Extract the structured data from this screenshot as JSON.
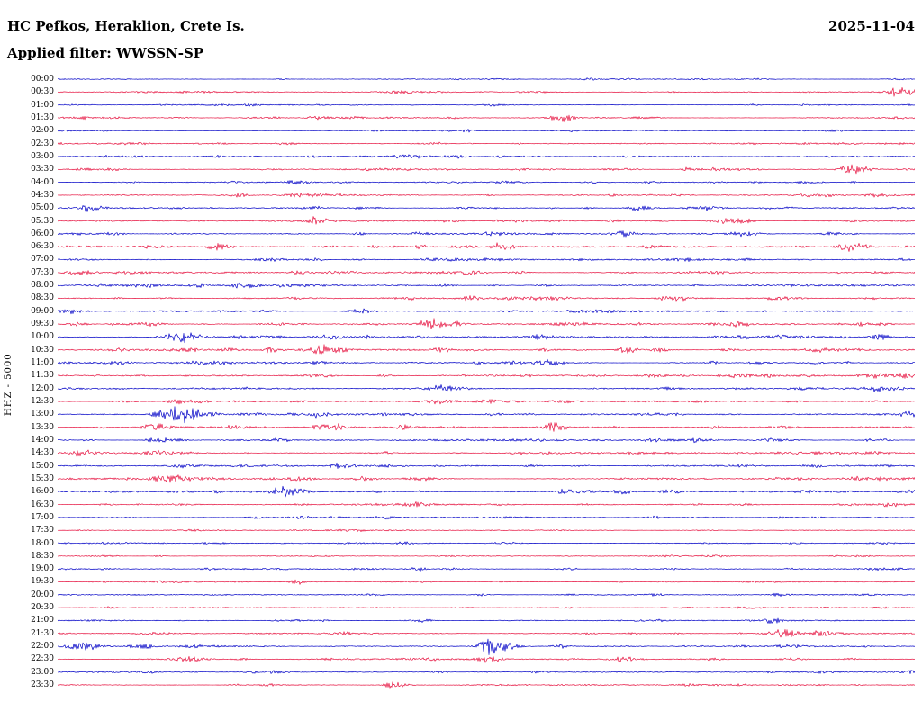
{
  "header": {
    "station_title": "HC Pefkos, Heraklion, Crete Is.",
    "date": "2025-11-04",
    "filter_line": "Applied filter: WWSSN-SP"
  },
  "axis": {
    "scale_label": "HHZ - 5000"
  },
  "colors": {
    "blue": "#0000c6",
    "red": "#e61340",
    "background": "#ffffff",
    "text": "#000000"
  },
  "chart_data": {
    "type": "line",
    "subtype": "helicorder-seismogram",
    "title": "HC Pefkos, Heraklion, Crete Is. 2025-11-04 HHZ helicorder, filter WWSSN-SP",
    "station": "HC Pefkos, Heraklion, Crete Is.",
    "date": "2025-11-04",
    "filter": "WWSSN-SP",
    "channel_scale": "HHZ - 5000",
    "row_duration_minutes": 30,
    "trace_colors_alternate": [
      "blue",
      "red"
    ],
    "event_fields": "t = fraction of 30-min row, amp = peak amplitude (px), w = width sigma (px)",
    "rows": [
      {
        "time": "00:00",
        "color": "blue",
        "noise": 0.7,
        "events": [
          {
            "t": 0.62,
            "amp": 1.0,
            "w": 6
          }
        ]
      },
      {
        "time": "00:30",
        "color": "red",
        "noise": 0.9,
        "events": [
          {
            "t": 0.98,
            "amp": 5.0,
            "w": 10
          },
          {
            "t": 0.4,
            "amp": 1.5,
            "w": 20
          },
          {
            "t": 0.55,
            "amp": 1.2,
            "w": 15
          }
        ]
      },
      {
        "time": "01:00",
        "color": "blue",
        "noise": 0.7,
        "events": [
          {
            "t": 0.5,
            "amp": 1.0,
            "w": 10
          }
        ]
      },
      {
        "time": "01:30",
        "color": "red",
        "noise": 0.9,
        "events": [
          {
            "t": 0.585,
            "amp": 4.0,
            "w": 9
          },
          {
            "t": 0.3,
            "amp": 1.5,
            "w": 8
          }
        ]
      },
      {
        "time": "02:00",
        "color": "blue",
        "noise": 0.8,
        "events": [
          {
            "t": 0.475,
            "amp": 1.8,
            "w": 6
          }
        ]
      },
      {
        "time": "02:30",
        "color": "red",
        "noise": 0.8,
        "events": [
          {
            "t": 0.44,
            "amp": 1.5,
            "w": 6
          },
          {
            "t": 0.1,
            "amp": 1.2,
            "w": 5
          }
        ]
      },
      {
        "time": "03:00",
        "color": "blue",
        "noise": 0.9,
        "events": [
          {
            "t": 0.46,
            "amp": 2.2,
            "w": 7
          },
          {
            "t": 0.515,
            "amp": 2.2,
            "w": 6
          }
        ]
      },
      {
        "time": "03:30",
        "color": "red",
        "noise": 0.9,
        "events": [
          {
            "t": 0.735,
            "amp": 2.5,
            "w": 6
          },
          {
            "t": 0.925,
            "amp": 5.5,
            "w": 11
          }
        ]
      },
      {
        "time": "04:00",
        "color": "blue",
        "noise": 0.9,
        "events": [
          {
            "t": 0.28,
            "amp": 2.0,
            "w": 7
          },
          {
            "t": 0.62,
            "amp": 1.5,
            "w": 6
          }
        ]
      },
      {
        "time": "04:30",
        "color": "red",
        "noise": 1.0,
        "events": [
          {
            "t": 0.21,
            "amp": 2.0,
            "w": 6
          },
          {
            "t": 0.3,
            "amp": 1.8,
            "w": 6
          },
          {
            "t": 0.87,
            "amp": 1.8,
            "w": 6
          }
        ]
      },
      {
        "time": "05:00",
        "color": "blue",
        "noise": 1.0,
        "events": [
          {
            "t": 0.035,
            "amp": 3.5,
            "w": 8
          },
          {
            "t": 0.3,
            "amp": 1.5,
            "w": 6
          },
          {
            "t": 0.68,
            "amp": 2.0,
            "w": 8
          },
          {
            "t": 0.76,
            "amp": 2.5,
            "w": 8
          }
        ]
      },
      {
        "time": "05:30",
        "color": "red",
        "noise": 1.2,
        "events": [
          {
            "t": 0.3,
            "amp": 3.5,
            "w": 8
          },
          {
            "t": 0.645,
            "amp": 2.0,
            "w": 6
          },
          {
            "t": 0.775,
            "amp": 3.5,
            "w": 8
          },
          {
            "t": 0.8,
            "amp": 2.5,
            "w": 6
          }
        ]
      },
      {
        "time": "06:00",
        "color": "blue",
        "noise": 1.3,
        "events": [
          {
            "t": 0.42,
            "amp": 1.8,
            "w": 7
          },
          {
            "t": 0.655,
            "amp": 2.0,
            "w": 7
          },
          {
            "t": 0.9,
            "amp": 1.5,
            "w": 6
          }
        ]
      },
      {
        "time": "06:30",
        "color": "red",
        "noise": 1.3,
        "events": [
          {
            "t": 0.185,
            "amp": 3.5,
            "w": 9
          },
          {
            "t": 0.425,
            "amp": 2.5,
            "w": 7
          },
          {
            "t": 0.515,
            "amp": 4.5,
            "w": 8
          },
          {
            "t": 0.92,
            "amp": 5.5,
            "w": 9
          }
        ]
      },
      {
        "time": "07:00",
        "color": "blue",
        "noise": 1.4,
        "events": [
          {
            "t": 0.25,
            "amp": 1.8,
            "w": 8
          },
          {
            "t": 0.5,
            "amp": 1.5,
            "w": 8
          },
          {
            "t": 0.73,
            "amp": 1.5,
            "w": 7
          }
        ]
      },
      {
        "time": "07:30",
        "color": "red",
        "noise": 1.3,
        "events": [
          {
            "t": 0.28,
            "amp": 2.0,
            "w": 7
          },
          {
            "t": 0.48,
            "amp": 1.8,
            "w": 7
          },
          {
            "t": 0.77,
            "amp": 1.8,
            "w": 7
          }
        ]
      },
      {
        "time": "08:00",
        "color": "blue",
        "noise": 1.3,
        "events": [
          {
            "t": 0.105,
            "amp": 2.0,
            "w": 6
          },
          {
            "t": 0.215,
            "amp": 3.5,
            "w": 9
          },
          {
            "t": 0.45,
            "amp": 1.5,
            "w": 7
          }
        ]
      },
      {
        "time": "08:30",
        "color": "red",
        "noise": 1.3,
        "events": [
          {
            "t": 0.48,
            "amp": 2.0,
            "w": 7
          },
          {
            "t": 0.71,
            "amp": 2.8,
            "w": 8
          }
        ]
      },
      {
        "time": "09:00",
        "color": "blue",
        "noise": 1.3,
        "events": [
          {
            "t": 0.35,
            "amp": 1.5,
            "w": 7
          },
          {
            "t": 0.6,
            "amp": 1.6,
            "w": 7
          }
        ]
      },
      {
        "time": "09:30",
        "color": "red",
        "noise": 1.4,
        "events": [
          {
            "t": 0.258,
            "amp": 2.5,
            "w": 7
          },
          {
            "t": 0.432,
            "amp": 6.5,
            "w": 9
          },
          {
            "t": 0.794,
            "amp": 2.8,
            "w": 8
          }
        ]
      },
      {
        "time": "10:00",
        "color": "blue",
        "noise": 1.5,
        "events": [
          {
            "t": 0.143,
            "amp": 5.0,
            "w": 13
          },
          {
            "t": 0.32,
            "amp": 2.0,
            "w": 7
          },
          {
            "t": 0.563,
            "amp": 2.2,
            "w": 7
          },
          {
            "t": 0.8,
            "amp": 2.2,
            "w": 7
          },
          {
            "t": 0.957,
            "amp": 3.0,
            "w": 8
          }
        ]
      },
      {
        "time": "10:30",
        "color": "red",
        "noise": 1.4,
        "events": [
          {
            "t": 0.248,
            "amp": 2.8,
            "w": 7
          },
          {
            "t": 0.295,
            "amp": 3.5,
            "w": 8
          },
          {
            "t": 0.447,
            "amp": 2.8,
            "w": 7
          },
          {
            "t": 0.663,
            "amp": 3.5,
            "w": 8
          }
        ]
      },
      {
        "time": "11:00",
        "color": "blue",
        "noise": 1.3,
        "events": [
          {
            "t": 0.573,
            "amp": 3.5,
            "w": 9
          },
          {
            "t": 0.3,
            "amp": 1.5,
            "w": 7
          }
        ]
      },
      {
        "time": "11:30",
        "color": "red",
        "noise": 1.3,
        "events": [
          {
            "t": 0.794,
            "amp": 2.8,
            "w": 7
          },
          {
            "t": 0.957,
            "amp": 2.5,
            "w": 7
          },
          {
            "t": 0.38,
            "amp": 1.5,
            "w": 7
          }
        ]
      },
      {
        "time": "12:00",
        "color": "blue",
        "noise": 1.3,
        "events": [
          {
            "t": 0.447,
            "amp": 2.0,
            "w": 7
          },
          {
            "t": 0.957,
            "amp": 3.0,
            "w": 8
          }
        ]
      },
      {
        "time": "12:30",
        "color": "red",
        "noise": 1.4,
        "events": [
          {
            "t": 0.138,
            "amp": 3.5,
            "w": 8
          },
          {
            "t": 0.07,
            "amp": 2.0,
            "w": 6
          },
          {
            "t": 0.5,
            "amp": 1.6,
            "w": 7
          }
        ]
      },
      {
        "time": "13:00",
        "color": "blue",
        "noise": 1.4,
        "events": [
          {
            "t": 0.143,
            "amp": 9.5,
            "w": 14
          },
          {
            "t": 0.118,
            "amp": 4.0,
            "w": 8
          },
          {
            "t": 0.3,
            "amp": 1.8,
            "w": 7
          }
        ]
      },
      {
        "time": "13:30",
        "color": "red",
        "noise": 1.5,
        "events": [
          {
            "t": 0.111,
            "amp": 4.0,
            "w": 10
          },
          {
            "t": 0.31,
            "amp": 2.2,
            "w": 7
          },
          {
            "t": 0.33,
            "amp": 2.0,
            "w": 6
          },
          {
            "t": 0.579,
            "amp": 2.8,
            "w": 8
          }
        ]
      },
      {
        "time": "14:00",
        "color": "blue",
        "noise": 1.5,
        "events": [
          {
            "t": 0.117,
            "amp": 2.8,
            "w": 8
          },
          {
            "t": 0.258,
            "amp": 2.2,
            "w": 7
          },
          {
            "t": 0.75,
            "amp": 1.6,
            "w": 7
          }
        ]
      },
      {
        "time": "14:30",
        "color": "red",
        "noise": 1.3,
        "events": [
          {
            "t": 0.027,
            "amp": 3.2,
            "w": 8
          },
          {
            "t": 0.537,
            "amp": 1.8,
            "w": 7
          }
        ]
      },
      {
        "time": "15:00",
        "color": "blue",
        "noise": 1.3,
        "events": [
          {
            "t": 0.327,
            "amp": 3.5,
            "w": 9
          },
          {
            "t": 0.55,
            "amp": 1.5,
            "w": 7
          }
        ]
      },
      {
        "time": "15:30",
        "color": "red",
        "noise": 1.4,
        "events": [
          {
            "t": 0.127,
            "amp": 5.5,
            "w": 12
          },
          {
            "t": 0.279,
            "amp": 2.8,
            "w": 8
          }
        ]
      },
      {
        "time": "16:00",
        "color": "blue",
        "noise": 1.3,
        "events": [
          {
            "t": 0.258,
            "amp": 4.5,
            "w": 9
          },
          {
            "t": 0.589,
            "amp": 2.8,
            "w": 8
          },
          {
            "t": 0.657,
            "amp": 3.2,
            "w": 8
          },
          {
            "t": 0.868,
            "amp": 2.2,
            "w": 7
          }
        ]
      },
      {
        "time": "16:30",
        "color": "red",
        "noise": 1.2,
        "events": [
          {
            "t": 0.967,
            "amp": 2.8,
            "w": 8
          },
          {
            "t": 0.42,
            "amp": 1.5,
            "w": 7
          }
        ]
      },
      {
        "time": "17:00",
        "color": "blue",
        "noise": 1.0,
        "events": [
          {
            "t": 0.28,
            "amp": 1.3,
            "w": 7
          }
        ]
      },
      {
        "time": "17:30",
        "color": "red",
        "noise": 0.8,
        "events": []
      },
      {
        "time": "18:00",
        "color": "blue",
        "noise": 0.8,
        "events": [
          {
            "t": 0.4,
            "amp": 1.8,
            "w": 6
          }
        ]
      },
      {
        "time": "18:30",
        "color": "red",
        "noise": 0.7,
        "events": []
      },
      {
        "time": "19:00",
        "color": "blue",
        "noise": 0.8,
        "events": [
          {
            "t": 0.42,
            "amp": 2.2,
            "w": 6
          },
          {
            "t": 0.455,
            "amp": 1.8,
            "w": 6
          }
        ]
      },
      {
        "time": "19:30",
        "color": "red",
        "noise": 0.8,
        "events": [
          {
            "t": 0.279,
            "amp": 1.6,
            "w": 6
          }
        ]
      },
      {
        "time": "20:00",
        "color": "blue",
        "noise": 0.8,
        "events": [
          {
            "t": 0.49,
            "amp": 1.6,
            "w": 6
          },
          {
            "t": 0.84,
            "amp": 1.4,
            "w": 6
          }
        ]
      },
      {
        "time": "20:30",
        "color": "red",
        "noise": 0.7,
        "events": []
      },
      {
        "time": "21:00",
        "color": "blue",
        "noise": 0.8,
        "events": [
          {
            "t": 0.427,
            "amp": 1.8,
            "w": 6
          },
          {
            "t": 0.831,
            "amp": 2.5,
            "w": 8
          }
        ]
      },
      {
        "time": "21:30",
        "color": "red",
        "noise": 0.9,
        "events": [
          {
            "t": 0.847,
            "amp": 4.5,
            "w": 10
          },
          {
            "t": 0.885,
            "amp": 2.0,
            "w": 6
          }
        ]
      },
      {
        "time": "22:00",
        "color": "blue",
        "noise": 1.0,
        "events": [
          {
            "t": 0.027,
            "amp": 3.5,
            "w": 12
          },
          {
            "t": 0.09,
            "amp": 2.0,
            "w": 8
          },
          {
            "t": 0.505,
            "amp": 9.5,
            "w": 12
          }
        ]
      },
      {
        "time": "22:30",
        "color": "red",
        "noise": 1.0,
        "events": [
          {
            "t": 0.5,
            "amp": 3.5,
            "w": 9
          },
          {
            "t": 0.657,
            "amp": 2.8,
            "w": 8
          }
        ]
      },
      {
        "time": "23:00",
        "color": "blue",
        "noise": 0.9,
        "events": [
          {
            "t": 0.248,
            "amp": 1.8,
            "w": 7
          },
          {
            "t": 0.56,
            "amp": 1.6,
            "w": 7
          }
        ]
      },
      {
        "time": "23:30",
        "color": "red",
        "noise": 0.9,
        "events": [
          {
            "t": 0.39,
            "amp": 3.5,
            "w": 8
          }
        ]
      }
    ]
  }
}
